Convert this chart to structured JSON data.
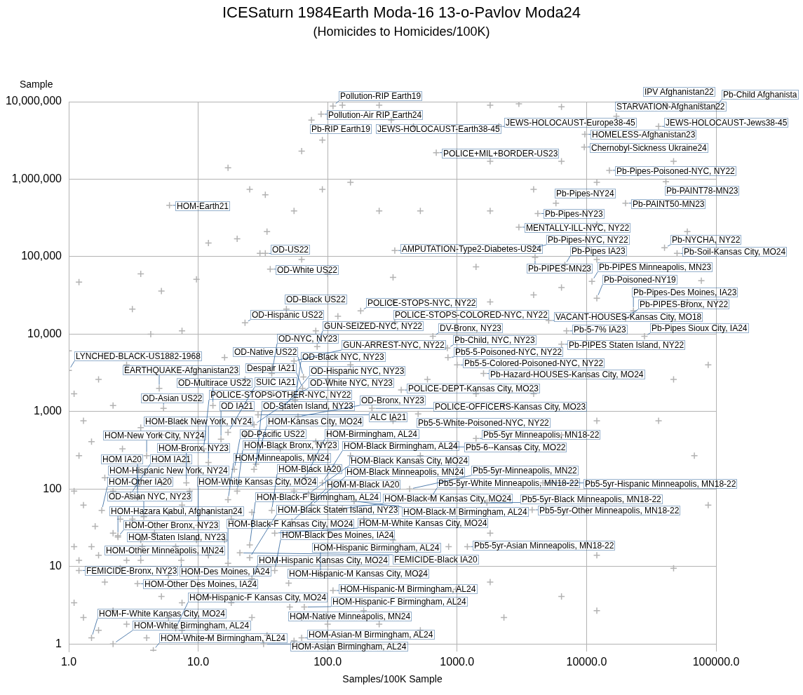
{
  "chart_data": {
    "type": "scatter",
    "title": "ICESaturn 1984Earth Moda-16 13-o-Pavlov Moda24",
    "subtitle": "(Homicides to Homicides/100K)",
    "xlabel": "Samples/100K Sample",
    "ylabel": "Sample",
    "log": "xy",
    "grid": true,
    "marker": "cross",
    "xlim": [
      1,
      100000
    ],
    "ylim": [
      0.8,
      10000000
    ],
    "xticks": [
      {
        "value": 1,
        "label": "1.0"
      },
      {
        "value": 10,
        "label": "10.0"
      },
      {
        "value": 100,
        "label": "100.0"
      },
      {
        "value": 1000,
        "label": "1000.0"
      },
      {
        "value": 10000,
        "label": "10000.0"
      },
      {
        "value": 100000,
        "label": "100000.0"
      }
    ],
    "yticks": [
      1,
      10,
      100,
      {
        "value": 1000,
        "label": "1,000"
      },
      {
        "value": 10000,
        "label": "10,000"
      },
      {
        "value": 100000,
        "label": "100,000"
      },
      {
        "value": 1000000,
        "label": "1,000,000"
      },
      {
        "value": 10000000,
        "label": "10,000,000"
      }
    ],
    "series": [
      {
        "color": "#b2b2b2",
        "x": [
          130,
          250,
          1800,
          3000,
          6400,
          41000,
          77000,
          17,
          25,
          33,
          63,
          91,
          460,
          1800,
          6400,
          12000,
          47000,
          12,
          34,
          55,
          91,
          150,
          250,
          520,
          1800,
          3900,
          12000,
          60000,
          1.2,
          5.2,
          3.6,
          9.7,
          20,
          30,
          63,
          100,
          320,
          1400,
          6400,
          12000,
          77000,
          1.0,
          3.1,
          4.3,
          7.5,
          81,
          120,
          320,
          1800,
          3900,
          60000,
          87000,
          1.1,
          1.3,
          1.7,
          2.2,
          2.8,
          3.6,
          5.2,
          7.5,
          16,
          23,
          38,
          100,
          150,
          320,
          590,
          1400,
          2300,
          3900,
          12000,
          47000,
          1.2,
          1.5,
          1.9,
          2.6,
          23,
          43,
          81,
          150,
          520,
          860,
          3000,
          6400,
          36000,
          68000,
          1.1,
          1.3,
          1.6,
          2.2,
          2.5,
          5.2,
          7.5,
          12,
          18,
          26,
          55,
          100,
          190,
          320,
          860,
          1800,
          12000,
          47000,
          87000,
          1.1,
          1.2,
          1.7,
          1.9,
          2.5,
          5.9,
          12,
          18,
          26,
          63,
          100,
          190,
          520,
          980,
          1800,
          6400,
          1.1,
          1.3,
          1.7,
          2.2,
          2.8,
          4.0,
          5.9,
          7.5,
          12,
          34,
          55,
          250,
          520,
          2300,
          12000,
          1.5,
          2.2,
          3.1,
          4.6,
          6.7,
          9.7,
          12,
          16,
          8.6,
          5.9,
          3.6,
          2.8,
          5.2,
          7.5
        ],
        "values": [
          9000000,
          9000000,
          9000000,
          9400000,
          8600000,
          9000000,
          9400000,
          1400000,
          740000,
          630000,
          2300000,
          3200000,
          4800000,
          1700000,
          1700000,
          910000,
          1700000,
          150000,
          210000,
          390000,
          740000,
          910000,
          390000,
          390000,
          390000,
          740000,
          260000,
          210000,
          47000,
          36000,
          60000,
          51000,
          170000,
          110000,
          92000,
          60000,
          54000,
          74000,
          40000,
          92000,
          49000,
          6100,
          21000,
          10000,
          11000,
          11000,
          17000,
          26000,
          26000,
          32000,
          26000,
          4000,
          1700,
          760,
          2600,
          1200,
          4000,
          620,
          500,
          760,
          5000,
          2600,
          1700,
          2600,
          4000,
          760,
          2600,
          1700,
          1200,
          1700,
          760,
          2600,
          270,
          410,
          140,
          330,
          500,
          330,
          410,
          270,
          270,
          220,
          330,
          500,
          760,
          270,
          94,
          62,
          33,
          94,
          41,
          120,
          62,
          50,
          41,
          50,
          94,
          27,
          41,
          22,
          18,
          27,
          14,
          9.5,
          62,
          18,
          12,
          14,
          6.3,
          9.5,
          7.7,
          4.1,
          3.4,
          2.2,
          2.2,
          1.8,
          2.7,
          7.7,
          5.1,
          6.3,
          4.1,
          3.4,
          2.2,
          1.5,
          2.7,
          1.8,
          1.2,
          2.2,
          1.5,
          1.2,
          1.3,
          1.1,
          1.8,
          1.5,
          2.2,
          2.7,
          18,
          27,
          41,
          27,
          18,
          22,
          14,
          22,
          94,
          50,
          22,
          12,
          4.1,
          3.4
        ]
      },
      {
        "color": "#b2b2b2",
        "x": [
          110,
          89,
          75,
          310,
          46000,
          100000,
          17000,
          2100,
          36000,
          9700,
          9600,
          690,
          15000,
          41000,
          5800,
          20000,
          4200,
          3000,
          330,
          3900,
          4000,
          6800,
          40000,
          50000,
          11000,
          12000,
          23000,
          20000,
          5100,
          180,
          330,
          7000,
          650,
          28000,
          33,
          36,
          48,
          23,
          6.0,
          6400,
          840,
          850,
          1000,
          1600,
          370,
          220,
          500,
          1400,
          910,
          4600,
          430,
          630,
          1700,
          3800,
          1200,
          83,
          55,
          37,
          65,
          64,
          5.0,
          1.0,
          56,
          13,
          5.4,
          45,
          29,
          59,
          27,
          17,
          15,
          11,
          4.0,
          12,
          28,
          19,
          27,
          67,
          91,
          8.1,
          3.4,
          3.0,
          20,
          3.4,
          71,
          17,
          160,
          75,
          130,
          37,
          1.8,
          3.8,
          53,
          10,
          39,
          2.4,
          2.4,
          25,
          3.7,
          21,
          25,
          3.6,
          7.4,
          17,
          1.2,
          39,
          88,
          26,
          50,
          3.4,
          110,
          51,
          66,
          6.7,
          1.5,
          63,
          2.2,
          32,
          4.5
        ],
        "values": [
          8800000,
          6900000,
          5800000,
          5800000,
          10000000,
          8600000,
          6500000,
          4800000,
          4800000,
          3800000,
          2600000,
          2200000,
          1300000,
          930000,
          490000,
          490000,
          360000,
          240000,
          120000,
          130000,
          98000,
          78000,
          130000,
          110000,
          48000,
          29000,
          20000,
          16000,
          15000,
          20000,
          14000,
          11000,
          9400,
          9400,
          110000,
          69000,
          21000,
          14000,
          460000,
          7400,
          6600,
          5000,
          4000,
          3100,
          1900,
          1100,
          930,
          450,
          350,
          120,
          100,
          78,
          67,
          54,
          18,
          6900,
          4500,
          3100,
          2800,
          2000,
          2000,
          3400,
          1400,
          1200,
          1100,
          1100,
          910,
          860,
          680,
          540,
          440,
          330,
          270,
          220,
          210,
          180,
          180,
          140,
          120,
          120,
          110,
          85,
          94,
          78,
          87,
          73,
          70,
          62,
          56,
          53,
          53,
          44,
          38,
          34,
          27,
          25,
          24,
          19,
          18,
          15,
          13,
          12,
          12,
          11,
          8.9,
          8.9,
          8.0,
          7.0,
          6.1,
          6.0,
          4.9,
          3.0,
          3.0,
          1.6,
          1.2,
          1.2,
          1,
          1,
          0.83
        ]
      }
    ],
    "annotations": [
      {
        "text": "Pollution-RIP Earth19",
        "x": 110,
        "y": 8800000
      },
      {
        "text": "Pollution-Air RIP Earth24",
        "x": 89,
        "y": 6900000
      },
      {
        "text": "Pb-RIP Earth19",
        "x": 75,
        "y": 5800000
      },
      {
        "text": "JEWS-HOLOCAUST-Earth38-45",
        "x": 310,
        "y": 5800000
      },
      {
        "text": "IPV Afghanistan22",
        "x": 46000,
        "y": 10000000
      },
      {
        "text": "Pb-Child Afghanista",
        "x": 100000,
        "y": 8600000
      },
      {
        "text": "STARVATION-Afghanistan22",
        "x": 17000,
        "y": 6500000
      },
      {
        "text": "JEWS-HOLOCAUST-Europe38-45",
        "x": 2100,
        "y": 4800000
      },
      {
        "text": "JEWS-HOLOCAUST-Jews38-45",
        "x": 36000,
        "y": 4800000
      },
      {
        "text": "HOMELESS-Afghanistan23",
        "x": 9700,
        "y": 3800000
      },
      {
        "text": "Chernobyl-Sickness Ukraine24",
        "x": 9600,
        "y": 2600000
      },
      {
        "text": "POLICE+MIL+BORDER-US23",
        "x": 690,
        "y": 2200000
      },
      {
        "text": "Pb-Pipes-Poisoned-NYC, NY22",
        "x": 15000,
        "y": 1300000
      },
      {
        "text": "Pb-PAINT78-MN23",
        "x": 41000,
        "y": 930000
      },
      {
        "text": "Pb-Pipes-NY24",
        "x": 5800,
        "y": 490000
      },
      {
        "text": "Pb-PAINT50-MN23",
        "x": 20000,
        "y": 490000
      },
      {
        "text": "Pb-Pipes-NY23",
        "x": 4200,
        "y": 360000
      },
      {
        "text": "MENTALLY-ILL-NYC, NY22",
        "x": 3000,
        "y": 240000
      },
      {
        "text": "AMPUTATION-Type2-Diabetes-US24",
        "x": 330,
        "y": 120000
      },
      {
        "text": "Pb-Pipes-NYC, NY22",
        "x": 3900,
        "y": 130000
      },
      {
        "text": "Pb-PIPES-MN23",
        "x": 4000,
        "y": 98000
      },
      {
        "text": "Pb-Pipes IA23",
        "x": 6800,
        "y": 78000
      },
      {
        "text": "Pb-NYCHA, NY22",
        "x": 40000,
        "y": 130000
      },
      {
        "text": "Pb-Soil-Kansas City, MO24",
        "x": 50000,
        "y": 110000
      },
      {
        "text": "Pb-PIPES Minneapolis, MN23",
        "x": 11000,
        "y": 48000
      },
      {
        "text": "Pb-Poisoned-NY19",
        "x": 12000,
        "y": 29000
      },
      {
        "text": "Pb-Pipes-Des Moines, IA23",
        "x": 23000,
        "y": 20000
      },
      {
        "text": "Pb-PIPES-Bronx, NY22",
        "x": 20000,
        "y": 16000
      },
      {
        "text": "VACANT-HOUSES-Kansas City, MO18",
        "x": 5100,
        "y": 15000
      },
      {
        "text": "POLICE-STOPS-NYC, NY22",
        "x": 180,
        "y": 20000
      },
      {
        "text": "POLICE-STOPS-COLORED-NYC, NY22",
        "x": 330,
        "y": 14000
      },
      {
        "text": "Pb-5-7% IA23",
        "x": 7000,
        "y": 11000
      },
      {
        "text": "DV-Bronx, NY23",
        "x": 650,
        "y": 9400
      },
      {
        "text": "Pb-Pipes Sioux City, IA24",
        "x": 28000,
        "y": 9400
      },
      {
        "text": "OD-US22",
        "x": 33,
        "y": 110000
      },
      {
        "text": "OD-White US22",
        "x": 36,
        "y": 69000
      },
      {
        "text": "OD-Black US22",
        "x": 48,
        "y": 21000
      },
      {
        "text": "OD-Hispanic US22",
        "x": 23,
        "y": 14000
      },
      {
        "text": "HOM-Earth21",
        "x": 6.0,
        "y": 460000
      },
      {
        "text": "Pb-PIPES Staten Island, NY22",
        "x": 6400,
        "y": 7400
      },
      {
        "text": "Pb-Child, NYC, NY23",
        "x": 840,
        "y": 6600
      },
      {
        "text": "Pb5-5-Poisoned-NYC, NY22",
        "x": 850,
        "y": 5000
      },
      {
        "text": "Pb5-5-Colored-Poisoned-NYC, NY22",
        "x": 1000,
        "y": 4000
      },
      {
        "text": "Pb-Hazard-HOUSES-Kansas City, MO24",
        "x": 1600,
        "y": 3100
      },
      {
        "text": "POLICE-DEPT-Kansas City, MO23",
        "x": 370,
        "y": 1900
      },
      {
        "text": "POLICE-OFFICERS-Kansas City, MO23",
        "x": 220,
        "y": 1100
      },
      {
        "text": "Pb5-5-White-Poisoned-NYC, NY22",
        "x": 500,
        "y": 930
      },
      {
        "text": "Pb5-5yr Minneapolis, MN18-22",
        "x": 1400,
        "y": 450
      },
      {
        "text": "Pb5-6--Kansas City, MO22",
        "x": 910,
        "y": 350
      },
      {
        "text": "Pb5-5yr-Hispanic Minneapolis, MN18-22",
        "x": 4600,
        "y": 120
      },
      {
        "text": "Pb5-5yr-Minneapolis, MN22",
        "x": 430,
        "y": 100
      },
      {
        "text": "Pb5-5yr-White Minneapolis, MN18-22",
        "x": 630,
        "y": 78
      },
      {
        "text": "Pb5-5yr-Black Minneapolis, MN18-22",
        "x": 1700,
        "y": 67
      },
      {
        "text": "Pb5-5yr-Other Minneapolis, MN18-22",
        "x": 3800,
        "y": 54
      },
      {
        "text": "Pb5-5yr-Asian Minneapolis, MN18-22",
        "x": 1200,
        "y": 18
      },
      {
        "text": "GUN-SEIZED-NYC, NY22",
        "x": 83,
        "y": 6900
      },
      {
        "text": "GUN-ARREST-NYC, NY22",
        "x": 55,
        "y": 4500
      },
      {
        "text": "OD-NYC, NY23",
        "x": 37,
        "y": 3100
      },
      {
        "text": "OD-Native US22",
        "x": 65,
        "y": 2800
      },
      {
        "text": "Despair IA21",
        "x": 64,
        "y": 2000
      },
      {
        "text": "EARTHQUAKE-Afghanistan23",
        "x": 5.0,
        "y": 2000
      },
      {
        "text": "LYNCHED-BLACK-US1882-1968",
        "x": 1.0,
        "y": 3400
      },
      {
        "text": "OD-Black NYC, NY23",
        "x": 56,
        "y": 1400
      },
      {
        "text": "OD-Multirace US22",
        "x": 13,
        "y": 1200
      },
      {
        "text": "OD-Asian US22",
        "x": 5.4,
        "y": 1100
      },
      {
        "text": "OD-Hispanic NYC, NY23",
        "x": 45,
        "y": 1100
      },
      {
        "text": "ALC IA21",
        "x": 29,
        "y": 910
      },
      {
        "text": "OD-Bronx, NY23",
        "x": 59,
        "y": 860
      },
      {
        "text": "OD-White NYC, NY23",
        "x": 27,
        "y": 680
      },
      {
        "text": "SUIC IA21",
        "x": 17,
        "y": 540
      },
      {
        "text": "OD IA21",
        "x": 15,
        "y": 440
      },
      {
        "text": "POLICE-STOPS-OTHER-NYC, NY22",
        "x": 11,
        "y": 330
      },
      {
        "text": "HOM-New York City, NY24",
        "x": 4.0,
        "y": 270
      },
      {
        "text": "HOM-Black New York, NY24",
        "x": 12,
        "y": 220
      },
      {
        "text": "OD-Staten Island, NY23",
        "x": 28,
        "y": 210
      },
      {
        "text": "OD-Pacific US22",
        "x": 19,
        "y": 180
      },
      {
        "text": "HOM-Kansas City, MO24",
        "x": 27,
        "y": 180
      },
      {
        "text": "HOM-Birmingham, AL24",
        "x": 67,
        "y": 140
      },
      {
        "text": "HOM-Black Birmingham, AL24",
        "x": 91,
        "y": 120
      },
      {
        "text": "HOM-Bronx, NY23",
        "x": 8.1,
        "y": 120
      },
      {
        "text": "HOM IA20",
        "x": 3.4,
        "y": 110
      },
      {
        "text": "HOM IA21",
        "x": 3.0,
        "y": 85
      },
      {
        "text": "HOM-Black Bronx, NY23",
        "x": 20,
        "y": 94
      },
      {
        "text": "HOM-Hispanic New York, NY24",
        "x": 3.4,
        "y": 78
      },
      {
        "text": "HOM-Black Kansas City, MO24",
        "x": 71,
        "y": 87
      },
      {
        "text": "HOM-Minneapolis, MN24",
        "x": 17,
        "y": 73
      },
      {
        "text": "HOM-Black-M Birmingham, AL24",
        "x": 160,
        "y": 70
      },
      {
        "text": "HOM-Black Minneapolis, MN24",
        "x": 75,
        "y": 62
      },
      {
        "text": "HOM-Black-M Kansas City, MO24",
        "x": 130,
        "y": 56
      },
      {
        "text": "HOM-Black IA20",
        "x": 37,
        "y": 53
      },
      {
        "text": "HOM-Other IA20",
        "x": 1.8,
        "y": 53
      },
      {
        "text": "OD-Asian NYC, NY23",
        "x": 3.8,
        "y": 44
      },
      {
        "text": "HOM-M-Black IA20",
        "x": 53,
        "y": 38
      },
      {
        "text": "HOM-White Kansas City, MO24",
        "x": 10,
        "y": 34
      },
      {
        "text": "HOM-M-White Kansas City, MO24",
        "x": 39,
        "y": 27
      },
      {
        "text": "HOM-Hazara Kabul, Afghanistan24",
        "x": 2.4,
        "y": 25
      },
      {
        "text": "HOM-Other Bronx, NY23",
        "x": 2.4,
        "y": 24
      },
      {
        "text": "HOM-Black-F Birmingham, AL24",
        "x": 25,
        "y": 19
      },
      {
        "text": "HOM-Staten Island, NY23",
        "x": 3.7,
        "y": 18
      },
      {
        "text": "FEMICIDE-Black IA20",
        "x": 21,
        "y": 15
      },
      {
        "text": "HOM-Black Staten Island, NY23",
        "x": 25,
        "y": 13
      },
      {
        "text": "HOM-Other Minneapolis, MN24",
        "x": 3.6,
        "y": 12
      },
      {
        "text": "HOM-Des Moines, IA24",
        "x": 7.4,
        "y": 12
      },
      {
        "text": "HOM-Black-F Kansas City, MO24",
        "x": 17,
        "y": 11
      },
      {
        "text": "FEMICIDE-Bronx, NY23",
        "x": 1.2,
        "y": 8.9
      },
      {
        "text": "HOM-Black Des Moines, IA24",
        "x": 39,
        "y": 8.9
      },
      {
        "text": "HOM-Hispanic Birmingham, AL24",
        "x": 88,
        "y": 8.0
      },
      {
        "text": "HOM-Hispanic Kansas City, MO24",
        "x": 26,
        "y": 7.0
      },
      {
        "text": "HOM-Hispanic-M Kansas City, MO24",
        "x": 50,
        "y": 6.1
      },
      {
        "text": "HOM-Other Des Moines, IA24",
        "x": 3.4,
        "y": 6.0
      },
      {
        "text": "HOM-Hispanic-M Birmingham, AL24",
        "x": 110,
        "y": 4.9
      },
      {
        "text": "HOM-Native Minneapolis, MN24",
        "x": 51,
        "y": 3.0
      },
      {
        "text": "HOM-Hispanic-F Birmingham, AL24",
        "x": 66,
        "y": 3.0
      },
      {
        "text": "HOM-Hispanic-F Kansas City, MO24",
        "x": 6.7,
        "y": 1.6
      },
      {
        "text": "HOM-F-White Kansas City, MO24",
        "x": 1.5,
        "y": 1.2
      },
      {
        "text": "HOM-Asian-M Birmingham, AL24",
        "x": 63,
        "y": 1.2
      },
      {
        "text": "HOM-White Birmingham, AL24",
        "x": 2.2,
        "y": 1
      },
      {
        "text": "HOM-Asian Birmingham, AL24",
        "x": 32,
        "y": 1
      },
      {
        "text": "HOM-White-M Birmingham, AL24",
        "x": 4.5,
        "y": 0.83
      }
    ]
  }
}
